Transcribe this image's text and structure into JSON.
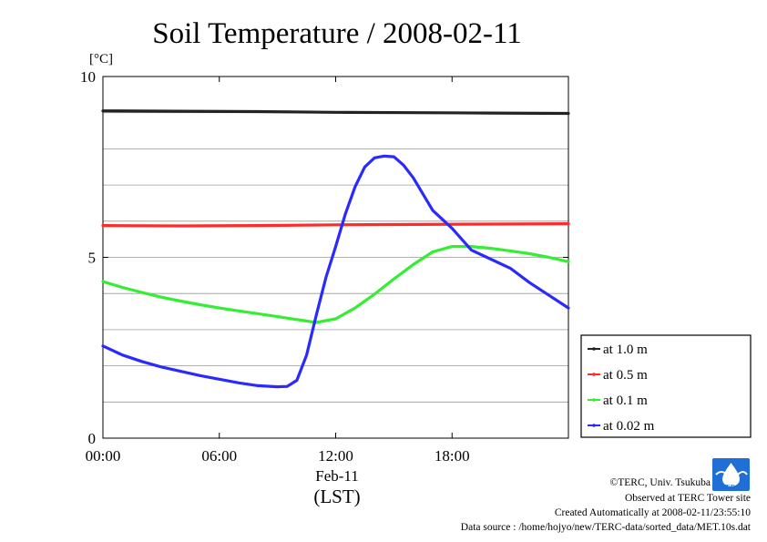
{
  "chart_data": {
    "type": "line",
    "title": "Soil Temperature / 2008-02-11",
    "ylabel": "[°C]",
    "ylim": [
      0,
      10
    ],
    "y_ticks": [
      "0",
      "5",
      "10"
    ],
    "xlim": [
      0,
      24
    ],
    "x_ticks": [
      {
        "value": 0,
        "label": "00:00"
      },
      {
        "value": 6,
        "label": "06:00"
      },
      {
        "value": 12,
        "label": "12:00"
      },
      {
        "value": 18,
        "label": "18:00"
      }
    ],
    "x_date_label": "Feb-11",
    "x_unit_label": "(LST)",
    "grid": "horizontal",
    "legend_position": "right",
    "series": [
      {
        "name": "at 1.0 m",
        "color": "#222222",
        "x": [
          0,
          4,
          8,
          12,
          16,
          20,
          24
        ],
        "values": [
          9.05,
          9.04,
          9.03,
          9.01,
          9.0,
          8.99,
          8.98
        ]
      },
      {
        "name": "at 0.5 m",
        "color": "#ff2a2a",
        "x": [
          0,
          4,
          8,
          12,
          16,
          20,
          24
        ],
        "values": [
          5.88,
          5.87,
          5.88,
          5.9,
          5.91,
          5.92,
          5.93
        ]
      },
      {
        "name": "at 0.1 m",
        "color": "#33ee33",
        "x": [
          0,
          1,
          2,
          3,
          4,
          5,
          6,
          7,
          8,
          9,
          10,
          11,
          12,
          13,
          14,
          15,
          16,
          17,
          18,
          19,
          20,
          21,
          22,
          23,
          24
        ],
        "values": [
          4.33,
          4.17,
          4.03,
          3.9,
          3.79,
          3.69,
          3.6,
          3.52,
          3.44,
          3.36,
          3.28,
          3.2,
          3.3,
          3.6,
          3.98,
          4.4,
          4.8,
          5.15,
          5.3,
          5.3,
          5.25,
          5.18,
          5.1,
          5.0,
          4.88
        ]
      },
      {
        "name": "at 0.02 m",
        "color": "#2a2aff",
        "x": [
          0,
          1,
          2,
          3,
          4,
          5,
          6,
          7,
          8,
          9,
          9.5,
          10,
          10.5,
          11,
          11.5,
          12,
          12.5,
          13,
          13.5,
          14,
          14.5,
          15,
          15.5,
          16,
          17,
          18,
          19,
          20,
          21,
          22,
          23,
          24
        ],
        "values": [
          2.55,
          2.3,
          2.12,
          1.97,
          1.85,
          1.73,
          1.63,
          1.53,
          1.45,
          1.42,
          1.43,
          1.6,
          2.3,
          3.4,
          4.45,
          5.3,
          6.2,
          6.95,
          7.5,
          7.75,
          7.8,
          7.78,
          7.55,
          7.2,
          6.3,
          5.8,
          5.2,
          4.95,
          4.7,
          4.3,
          3.95,
          3.6
        ]
      }
    ]
  },
  "footer": {
    "credit": "©TERC, Univ. Tsukuba",
    "site": "Observed at TERC Tower site",
    "created": "Created Automatically at 2008-02-11/23:55:10",
    "source": "Data source : /home/hojyo/new/TERC-data/sorted_data/MET.10s.dat"
  },
  "logo": {
    "text": "TERC",
    "color": "#1f6fd6"
  }
}
